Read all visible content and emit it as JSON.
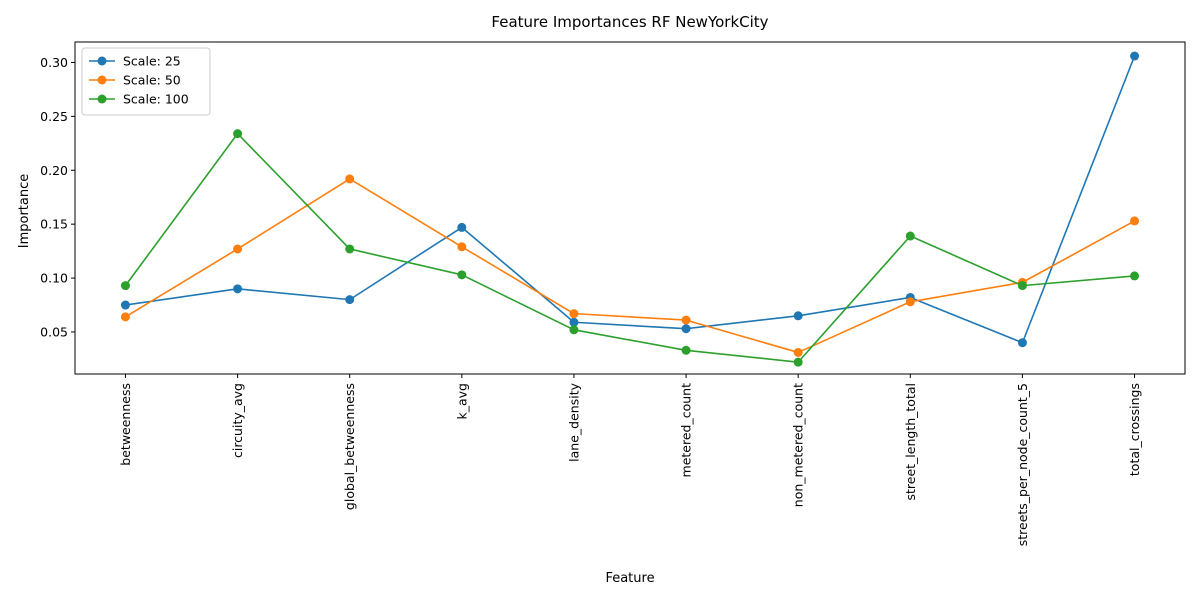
{
  "chart_data": {
    "type": "line",
    "title": "Feature Importances RF NewYorkCity",
    "xlabel": "Feature",
    "ylabel": "Importance",
    "categories": [
      "betweenness",
      "circuity_avg",
      "global_betweenness",
      "k_avg",
      "lane_density",
      "metered_count",
      "non_metered_count",
      "street_length_total",
      "streets_per_node_count_5",
      "total_crossings"
    ],
    "ylim": [
      0.011,
      0.319
    ],
    "yticks": [
      0.05,
      0.1,
      0.15,
      0.2,
      0.25,
      0.3
    ],
    "ytick_labels": [
      "0.05",
      "0.10",
      "0.15",
      "0.20",
      "0.25",
      "0.30"
    ],
    "grid": false,
    "legend_position": "upper-left",
    "marker": "circle",
    "series": [
      {
        "name": "Scale: 25",
        "color": "#1f77b4",
        "values": [
          0.075,
          0.09,
          0.08,
          0.147,
          0.059,
          0.053,
          0.065,
          0.082,
          0.04,
          0.306
        ]
      },
      {
        "name": "Scale: 50",
        "color": "#ff7f0e",
        "values": [
          0.064,
          0.127,
          0.192,
          0.129,
          0.067,
          0.061,
          0.031,
          0.078,
          0.096,
          0.153
        ]
      },
      {
        "name": "Scale: 100",
        "color": "#2ca02c",
        "values": [
          0.093,
          0.234,
          0.127,
          0.103,
          0.052,
          0.033,
          0.022,
          0.139,
          0.093,
          0.102
        ]
      }
    ]
  }
}
